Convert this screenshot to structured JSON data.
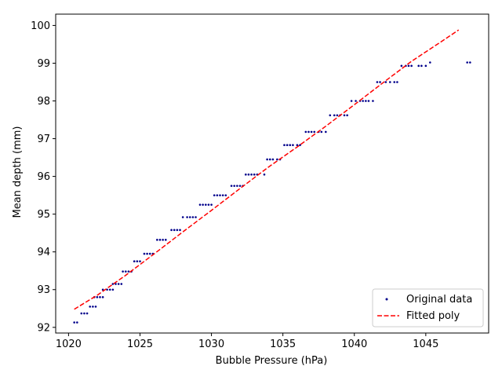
{
  "chart_data": {
    "type": "scatter",
    "title": "",
    "xlabel": "Bubble Pressure (hPa)",
    "ylabel": "Mean depth (mm)",
    "xlim": [
      1019.1,
      1049.4
    ],
    "ylim": [
      91.85,
      100.3
    ],
    "xticks": [
      1020,
      1025,
      1030,
      1035,
      1040,
      1045
    ],
    "yticks": [
      92,
      93,
      94,
      95,
      96,
      97,
      98,
      99,
      100
    ],
    "grid": false,
    "legend_position": "lower-right",
    "series": [
      {
        "name": "Original data",
        "kind": "scatter",
        "color": "#00008b",
        "marker": "dot",
        "points": [
          [
            1020.4,
            92.13
          ],
          [
            1020.6,
            92.13
          ],
          [
            1020.9,
            92.37
          ],
          [
            1021.1,
            92.37
          ],
          [
            1021.3,
            92.37
          ],
          [
            1021.5,
            92.55
          ],
          [
            1021.7,
            92.55
          ],
          [
            1021.9,
            92.55
          ],
          [
            1021.8,
            92.8
          ],
          [
            1022.0,
            92.8
          ],
          [
            1022.2,
            92.8
          ],
          [
            1022.4,
            92.8
          ],
          [
            1022.4,
            93.0
          ],
          [
            1022.7,
            93.0
          ],
          [
            1022.9,
            93.0
          ],
          [
            1023.1,
            93.0
          ],
          [
            1023.1,
            93.15
          ],
          [
            1023.3,
            93.15
          ],
          [
            1023.5,
            93.15
          ],
          [
            1023.7,
            93.15
          ],
          [
            1023.8,
            93.48
          ],
          [
            1024.0,
            93.48
          ],
          [
            1024.2,
            93.48
          ],
          [
            1024.4,
            93.48
          ],
          [
            1024.6,
            93.75
          ],
          [
            1024.8,
            93.75
          ],
          [
            1025.0,
            93.75
          ],
          [
            1025.3,
            93.95
          ],
          [
            1025.5,
            93.95
          ],
          [
            1025.7,
            93.95
          ],
          [
            1025.9,
            93.95
          ],
          [
            1026.2,
            94.32
          ],
          [
            1026.4,
            94.32
          ],
          [
            1026.6,
            94.32
          ],
          [
            1026.8,
            94.32
          ],
          [
            1027.2,
            94.58
          ],
          [
            1027.4,
            94.58
          ],
          [
            1027.6,
            94.58
          ],
          [
            1027.8,
            94.58
          ],
          [
            1028.0,
            94.92
          ],
          [
            1028.3,
            94.92
          ],
          [
            1028.5,
            94.92
          ],
          [
            1028.7,
            94.92
          ],
          [
            1028.9,
            94.92
          ],
          [
            1029.2,
            95.25
          ],
          [
            1029.4,
            95.25
          ],
          [
            1029.6,
            95.25
          ],
          [
            1029.8,
            95.25
          ],
          [
            1030.0,
            95.25
          ],
          [
            1030.2,
            95.5
          ],
          [
            1030.4,
            95.5
          ],
          [
            1030.6,
            95.5
          ],
          [
            1030.8,
            95.5
          ],
          [
            1031.0,
            95.5
          ],
          [
            1031.4,
            95.75
          ],
          [
            1031.6,
            95.75
          ],
          [
            1031.8,
            95.75
          ],
          [
            1032.0,
            95.75
          ],
          [
            1032.2,
            95.75
          ],
          [
            1032.4,
            96.05
          ],
          [
            1032.6,
            96.05
          ],
          [
            1032.8,
            96.05
          ],
          [
            1033.0,
            96.05
          ],
          [
            1033.2,
            96.05
          ],
          [
            1033.7,
            96.05
          ],
          [
            1033.9,
            96.45
          ],
          [
            1034.1,
            96.45
          ],
          [
            1034.3,
            96.45
          ],
          [
            1034.6,
            96.45
          ],
          [
            1034.8,
            96.45
          ],
          [
            1035.1,
            96.83
          ],
          [
            1035.3,
            96.83
          ],
          [
            1035.5,
            96.83
          ],
          [
            1035.7,
            96.83
          ],
          [
            1036.0,
            96.83
          ],
          [
            1036.2,
            96.83
          ],
          [
            1036.6,
            97.18
          ],
          [
            1036.8,
            97.18
          ],
          [
            1037.0,
            97.18
          ],
          [
            1037.2,
            97.18
          ],
          [
            1037.5,
            97.18
          ],
          [
            1037.7,
            97.18
          ],
          [
            1038.0,
            97.18
          ],
          [
            1038.3,
            97.62
          ],
          [
            1038.6,
            97.62
          ],
          [
            1038.8,
            97.62
          ],
          [
            1039.0,
            97.62
          ],
          [
            1039.3,
            97.62
          ],
          [
            1039.5,
            97.62
          ],
          [
            1039.8,
            98.0
          ],
          [
            1040.1,
            98.0
          ],
          [
            1040.4,
            98.0
          ],
          [
            1040.6,
            98.0
          ],
          [
            1040.8,
            98.0
          ],
          [
            1041.0,
            98.0
          ],
          [
            1041.3,
            98.0
          ],
          [
            1041.6,
            98.5
          ],
          [
            1041.8,
            98.5
          ],
          [
            1042.2,
            98.5
          ],
          [
            1042.5,
            98.5
          ],
          [
            1042.8,
            98.5
          ],
          [
            1043.0,
            98.5
          ],
          [
            1043.3,
            98.93
          ],
          [
            1043.6,
            98.93
          ],
          [
            1043.8,
            98.93
          ],
          [
            1044.0,
            98.93
          ],
          [
            1044.5,
            98.93
          ],
          [
            1044.7,
            98.93
          ],
          [
            1045.0,
            98.93
          ],
          [
            1045.3,
            99.02
          ],
          [
            1047.9,
            99.02
          ],
          [
            1048.1,
            99.02
          ]
        ]
      },
      {
        "name": "Fitted poly",
        "kind": "line",
        "color": "#ff0000",
        "dash": "dashed",
        "points": [
          [
            1020.4,
            92.48
          ],
          [
            1022.0,
            92.85
          ],
          [
            1024.0,
            93.38
          ],
          [
            1026.0,
            93.95
          ],
          [
            1028.0,
            94.53
          ],
          [
            1030.0,
            95.1
          ],
          [
            1032.0,
            95.68
          ],
          [
            1034.0,
            96.25
          ],
          [
            1036.0,
            96.78
          ],
          [
            1038.0,
            97.33
          ],
          [
            1040.0,
            97.9
          ],
          [
            1042.0,
            98.48
          ],
          [
            1044.0,
            99.05
          ],
          [
            1046.0,
            99.55
          ],
          [
            1047.3,
            99.88
          ]
        ]
      }
    ]
  }
}
